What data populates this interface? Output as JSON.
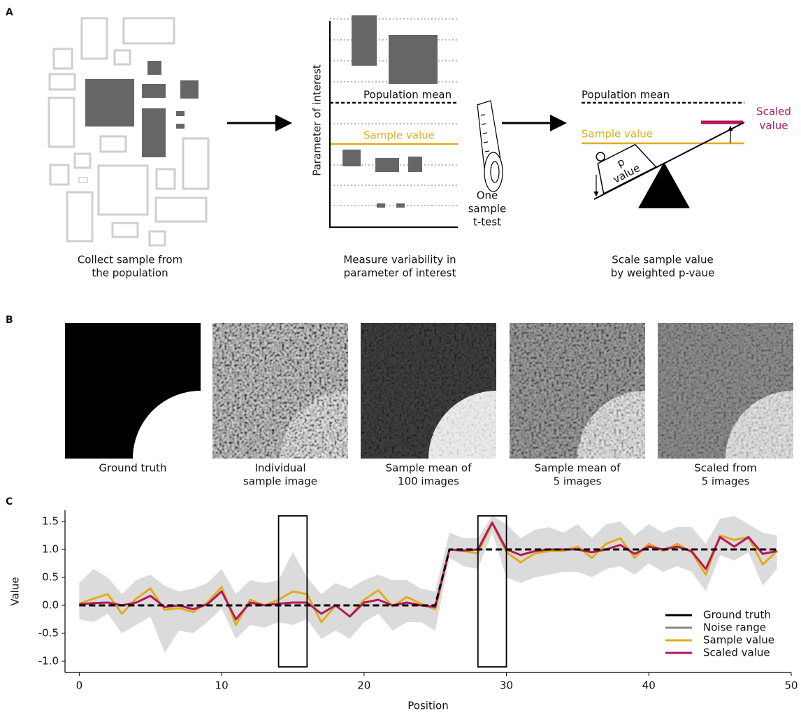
{
  "panel_a": {
    "label": "A",
    "center": {
      "axis_label": "Parameter of interest",
      "population_mean": "Population mean",
      "sample_value": "Sample value",
      "test_label": [
        "One",
        "sample",
        "t-test"
      ]
    },
    "right": {
      "population_mean": "Population mean",
      "sample_value": "Sample value",
      "weight_label": [
        "p",
        "value"
      ],
      "scaled_value": [
        "Scaled",
        "value"
      ]
    },
    "captions": [
      [
        "Collect sample from",
        "the population"
      ],
      [
        "Measure variability in",
        "parameter of interest"
      ],
      [
        "Scale sample value",
        "by weighted p-vaue"
      ]
    ]
  },
  "panel_b": {
    "label": "B",
    "captions": [
      [
        "Ground truth"
      ],
      [
        "Individual",
        "sample image"
      ],
      [
        "Sample mean of",
        "100 images"
      ],
      [
        "Sample mean of",
        "5 images"
      ],
      [
        "Scaled from",
        "5 images"
      ]
    ]
  },
  "chart_data": {
    "type": "line",
    "panel_label": "C",
    "x_label": "Position",
    "y_label": "Value",
    "x": [
      0,
      1,
      2,
      3,
      4,
      5,
      6,
      7,
      8,
      9,
      10,
      11,
      12,
      13,
      14,
      15,
      16,
      17,
      18,
      19,
      20,
      21,
      22,
      23,
      24,
      25,
      26,
      27,
      28,
      29,
      30,
      31,
      32,
      33,
      34,
      35,
      36,
      37,
      38,
      39,
      40,
      41,
      42,
      43,
      44,
      45,
      46,
      47,
      48,
      49
    ],
    "xlim": [
      -1,
      50
    ],
    "xticks": [
      0,
      10,
      20,
      30,
      40,
      50
    ],
    "ylim": [
      -1.2,
      1.7
    ],
    "yticks": [
      {
        "value": -1,
        "label": "-1.0"
      },
      -0.5,
      {
        "value": 0,
        "label": "0.0"
      },
      0.5,
      {
        "value": 1,
        "label": "1.0"
      },
      1.5
    ],
    "legend": "lower right",
    "highlights": [
      {
        "x": [
          14,
          16
        ],
        "y": [
          -1.1,
          1.6
        ]
      },
      {
        "x": [
          28,
          30
        ],
        "y": [
          -1.1,
          1.6
        ]
      }
    ],
    "series": [
      {
        "name": "Ground truth",
        "color": "#000000",
        "linestyle": "dashed",
        "values": [
          0,
          0,
          0,
          0,
          0,
          0,
          0,
          0,
          0,
          0,
          0,
          0,
          0,
          0,
          0,
          0,
          0,
          0,
          0,
          0,
          0,
          0,
          0,
          0,
          0,
          0,
          1,
          1,
          1,
          1,
          1,
          1,
          1,
          1,
          1,
          1,
          1,
          1,
          1,
          1,
          1,
          1,
          1,
          1,
          1,
          1,
          1,
          1,
          1,
          1
        ]
      },
      {
        "name": "Noise range",
        "color": "#888888",
        "fill_opacity": 0.3,
        "upper": [
          0.4,
          0.65,
          0.5,
          0.2,
          0.45,
          0.55,
          0.35,
          0.25,
          0.3,
          0.4,
          0.65,
          0.2,
          0.45,
          0.4,
          0.45,
          0.95,
          0.5,
          0.2,
          0.4,
          0.3,
          0.45,
          0.55,
          0.45,
          0.45,
          0.3,
          0.25,
          1.3,
          1.2,
          1.2,
          1.6,
          1.45,
          1.2,
          1.35,
          1.4,
          1.3,
          1.45,
          1.2,
          1.45,
          1.5,
          1.25,
          1.45,
          1.3,
          1.4,
          1.4,
          1.1,
          1.55,
          1.6,
          1.45,
          1.3,
          1.25
        ],
        "lower": [
          -0.25,
          -0.3,
          -0.15,
          -0.5,
          -0.35,
          -0.2,
          -0.85,
          -0.45,
          -0.5,
          -0.3,
          -0.05,
          -0.6,
          -0.35,
          -0.4,
          -0.3,
          -0.35,
          -0.25,
          -0.6,
          -0.45,
          -0.6,
          -0.3,
          -0.15,
          -0.45,
          -0.3,
          -0.3,
          -0.45,
          0.85,
          0.7,
          0.65,
          1.3,
          0.5,
          0.4,
          0.5,
          0.55,
          0.6,
          0.6,
          0.5,
          0.65,
          0.7,
          0.55,
          0.75,
          0.6,
          0.7,
          0.6,
          0.25,
          0.9,
          0.8,
          0.95,
          0.35,
          0.65
        ]
      },
      {
        "name": "Sample value",
        "color": "#e0ac1a",
        "values": [
          0.03,
          0.12,
          0.2,
          -0.15,
          0.12,
          0.3,
          -0.08,
          -0.05,
          -0.12,
          0.05,
          0.33,
          -0.35,
          0.1,
          0,
          0.1,
          0.25,
          0.2,
          -0.3,
          0,
          -0.2,
          0.1,
          0.27,
          -0.02,
          0.15,
          0.03,
          -0.07,
          1,
          0.97,
          0.93,
          1.47,
          0.95,
          0.77,
          0.93,
          0.97,
          0.97,
          1.05,
          0.85,
          1.1,
          1.2,
          0.85,
          1.1,
          0.97,
          1.1,
          0.95,
          0.55,
          1.25,
          1.17,
          1.22,
          0.73,
          0.97
        ]
      },
      {
        "name": "Scaled value",
        "color": "#b5175e",
        "values": [
          0.02,
          0.04,
          0.05,
          0,
          0.05,
          0.17,
          -0.03,
          0,
          -0.07,
          0.02,
          0.25,
          -0.25,
          0.05,
          0,
          0.03,
          0.05,
          0.05,
          -0.15,
          0,
          -0.2,
          0.05,
          0.1,
          0,
          0.05,
          0,
          -0.03,
          1,
          0.98,
          1,
          1.48,
          1,
          0.9,
          0.97,
          1,
          1,
          1,
          0.95,
          1,
          1.08,
          0.92,
          1.05,
          1,
          1.05,
          0.97,
          0.65,
          1.22,
          1.05,
          1.22,
          0.92,
          0.97
        ]
      }
    ]
  }
}
